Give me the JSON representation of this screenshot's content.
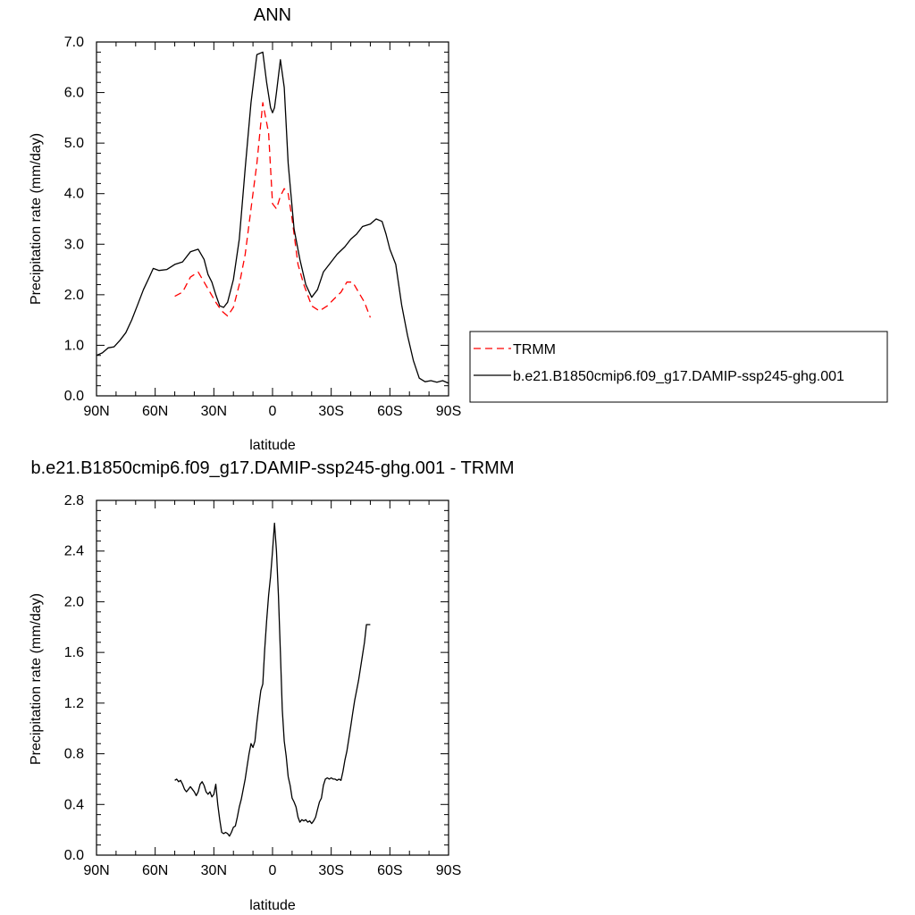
{
  "chart_data": [
    {
      "type": "line",
      "title": "ANN",
      "xlabel": "latitude",
      "ylabel": "Precipitation rate (mm/day)",
      "xlim": [
        90,
        -90
      ],
      "ylim": [
        0,
        7
      ],
      "x_ticks": [
        90,
        60,
        30,
        0,
        -30,
        -60,
        -90
      ],
      "x_tick_labels": [
        "90N",
        "60N",
        "30N",
        "0",
        "30S",
        "60S",
        "90S"
      ],
      "y_ticks": [
        0,
        1,
        2,
        3,
        4,
        5,
        6,
        7
      ],
      "y_tick_labels": [
        "0.0",
        "1.0",
        "2.0",
        "3.0",
        "4.0",
        "5.0",
        "6.0",
        "7.0"
      ],
      "legend_position": "right",
      "series": [
        {
          "name": "TRMM",
          "color": "#ff0000",
          "dash": "dashed",
          "x": [
            50,
            46,
            42,
            38,
            35,
            32,
            29,
            26,
            23,
            20,
            17,
            14,
            11,
            8,
            5,
            2,
            0,
            -2,
            -4,
            -6,
            -8,
            -10,
            -13,
            -16,
            -20,
            -24,
            -28,
            -31,
            -35,
            -38,
            -41,
            -44,
            -47,
            -50
          ],
          "y": [
            1.97,
            2.05,
            2.35,
            2.45,
            2.25,
            2.05,
            1.85,
            1.68,
            1.58,
            1.75,
            2.2,
            2.8,
            3.7,
            4.6,
            5.8,
            5.2,
            3.8,
            3.7,
            3.95,
            4.1,
            4.0,
            3.5,
            2.6,
            2.2,
            1.78,
            1.68,
            1.78,
            1.9,
            2.05,
            2.25,
            2.25,
            2.05,
            1.85,
            1.55
          ]
        },
        {
          "name": "b.e21.B1850cmip6.f09_g17.DAMIP-ssp245-ghg.001",
          "color": "#000000",
          "dash": "solid",
          "x": [
            90,
            87,
            84,
            81,
            78,
            75,
            72,
            69,
            66,
            63,
            61,
            58,
            54,
            50,
            46,
            42,
            38,
            35,
            33,
            31,
            29,
            27,
            25,
            23,
            20,
            17,
            14,
            11,
            8,
            5,
            3,
            1,
            0,
            -1,
            -2,
            -4,
            -6,
            -8,
            -11,
            -14,
            -17,
            -20,
            -23,
            -26,
            -29,
            -33,
            -37,
            -40,
            -43,
            -46,
            -50,
            -53,
            -56,
            -58,
            -60,
            -63,
            -66,
            -69,
            -72,
            -75,
            -78,
            -81,
            -84,
            -87,
            -90
          ],
          "y": [
            0.8,
            0.85,
            0.95,
            0.97,
            1.1,
            1.25,
            1.5,
            1.8,
            2.1,
            2.35,
            2.52,
            2.48,
            2.5,
            2.6,
            2.65,
            2.85,
            2.9,
            2.7,
            2.4,
            2.25,
            2.0,
            1.78,
            1.75,
            1.85,
            2.3,
            3.1,
            4.5,
            5.8,
            6.75,
            6.8,
            6.2,
            5.7,
            5.6,
            5.7,
            6.0,
            6.65,
            6.1,
            4.6,
            3.3,
            2.7,
            2.2,
            1.95,
            2.1,
            2.45,
            2.6,
            2.8,
            2.95,
            3.1,
            3.2,
            3.35,
            3.4,
            3.5,
            3.45,
            3.2,
            2.9,
            2.6,
            1.8,
            1.2,
            0.7,
            0.35,
            0.28,
            0.3,
            0.27,
            0.3,
            0.25
          ]
        }
      ]
    },
    {
      "type": "line",
      "title": "b.e21.B1850cmip6.f09_g17.DAMIP-ssp245-ghg.001 - TRMM",
      "xlabel": "latitude",
      "ylabel": "Precipitation rate (mm/day)",
      "xlim": [
        90,
        -90
      ],
      "ylim": [
        0,
        2.8
      ],
      "x_ticks": [
        90,
        60,
        30,
        0,
        -30,
        -60,
        -90
      ],
      "x_tick_labels": [
        "90N",
        "60N",
        "30N",
        "0",
        "30S",
        "60S",
        "90S"
      ],
      "y_ticks": [
        0,
        0.4,
        0.8,
        1.2,
        1.6,
        2.0,
        2.4,
        2.8
      ],
      "y_tick_labels": [
        "0.0",
        "0.4",
        "0.8",
        "1.2",
        "1.6",
        "2.0",
        "2.4",
        "2.8"
      ],
      "series": [
        {
          "color": "#000000",
          "dash": "solid",
          "x": [
            50,
            49,
            48,
            47,
            46,
            45,
            44,
            43,
            42,
            41,
            40,
            39,
            38,
            37,
            36,
            35,
            34,
            33,
            32,
            31,
            30,
            29,
            28,
            27,
            26,
            25,
            24,
            23,
            22,
            21,
            20,
            19,
            18,
            17,
            16,
            15,
            14,
            13,
            12,
            11,
            10,
            9,
            8,
            7,
            6,
            5,
            4,
            3,
            2,
            1,
            0,
            -1,
            -2,
            -3,
            -4,
            -5,
            -6,
            -7,
            -8,
            -9,
            -10,
            -11,
            -12,
            -13,
            -14,
            -15,
            -16,
            -17,
            -18,
            -19,
            -20,
            -21,
            -22,
            -23,
            -24,
            -25,
            -26,
            -27,
            -28,
            -29,
            -30,
            -31,
            -32,
            -33,
            -34,
            -35,
            -36,
            -37,
            -38,
            -39,
            -40,
            -41,
            -42,
            -43,
            -44,
            -45,
            -46,
            -47,
            -48,
            -49,
            -50
          ],
          "y": [
            0.59,
            0.6,
            0.58,
            0.59,
            0.56,
            0.52,
            0.5,
            0.52,
            0.54,
            0.52,
            0.5,
            0.47,
            0.5,
            0.56,
            0.58,
            0.55,
            0.5,
            0.48,
            0.5,
            0.46,
            0.48,
            0.56,
            0.4,
            0.28,
            0.18,
            0.17,
            0.18,
            0.17,
            0.15,
            0.18,
            0.22,
            0.23,
            0.3,
            0.38,
            0.44,
            0.52,
            0.6,
            0.7,
            0.8,
            0.88,
            0.85,
            0.9,
            1.05,
            1.18,
            1.3,
            1.35,
            1.62,
            1.85,
            2.05,
            2.2,
            2.4,
            2.62,
            2.4,
            2.05,
            1.6,
            1.15,
            0.9,
            0.78,
            0.62,
            0.55,
            0.45,
            0.42,
            0.38,
            0.3,
            0.26,
            0.28,
            0.27,
            0.28,
            0.26,
            0.27,
            0.25,
            0.27,
            0.3,
            0.36,
            0.42,
            0.45,
            0.55,
            0.6,
            0.61,
            0.6,
            0.61,
            0.6,
            0.6,
            0.59,
            0.6,
            0.59,
            0.66,
            0.75,
            0.82,
            0.92,
            1.02,
            1.12,
            1.22,
            1.3,
            1.38,
            1.48,
            1.58,
            1.68,
            1.82,
            1.82,
            1.82
          ]
        }
      ]
    }
  ]
}
